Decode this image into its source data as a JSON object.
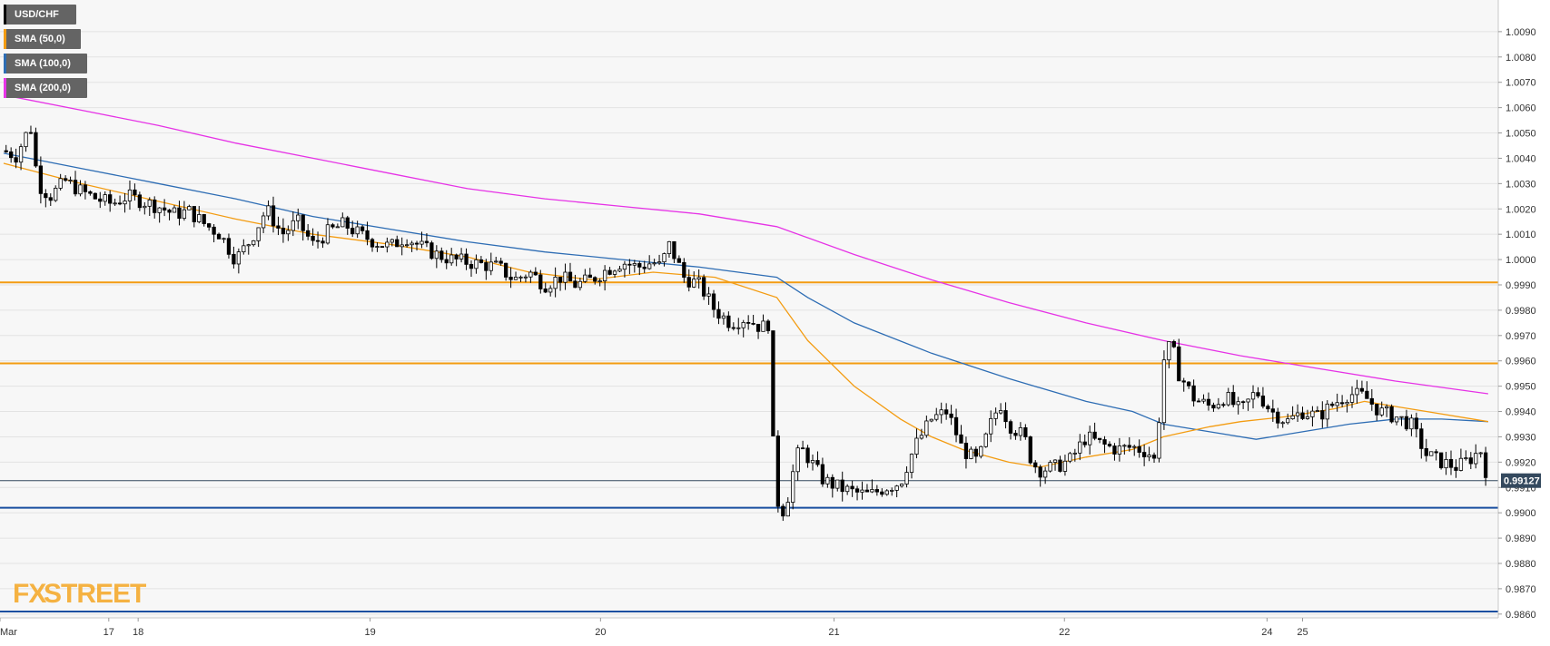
{
  "legend": [
    {
      "label": "USD/CHF",
      "color": "#000000"
    },
    {
      "label": "SMA (50,0)",
      "color": "#f39c12"
    },
    {
      "label": "SMA (100,0)",
      "color": "#2e6db4"
    },
    {
      "label": "SMA (200,0)",
      "color": "#e633e6"
    }
  ],
  "watermark": {
    "text_fx": "FX",
    "text_street": "STREET",
    "color": "#f5a623"
  },
  "price_badge": "0.99127",
  "chart_data": {
    "type": "candlestick",
    "symbol": "USD/CHF",
    "ylim": [
      0.98585,
      1.01025
    ],
    "y_ticks": [
      "0.9860",
      "0.9870",
      "0.9880",
      "0.9890",
      "0.9900",
      "0.9910",
      "0.9920",
      "0.9930",
      "0.9940",
      "0.9950",
      "0.9960",
      "0.9970",
      "0.9980",
      "0.9990",
      "1.0000",
      "1.0010",
      "1.0020",
      "1.0030",
      "1.0040",
      "1.0050",
      "1.0060",
      "1.0070",
      "1.0080",
      "1.0090"
    ],
    "x_labels": [
      {
        "label": "Mar",
        "t": 0
      },
      {
        "label": "17",
        "t": 0.068
      },
      {
        "label": "18",
        "t": 0.087
      },
      {
        "label": "19",
        "t": 0.237
      },
      {
        "label": "20",
        "t": 0.386
      },
      {
        "label": "21",
        "t": 0.537
      },
      {
        "label": "22",
        "t": 0.686
      },
      {
        "label": "24",
        "t": 0.817
      },
      {
        "label": "25",
        "t": 0.84
      }
    ],
    "last_price": 0.99127,
    "horizontal_levels": [
      {
        "value": 0.9991,
        "color": "#f39c12"
      },
      {
        "value": 0.9959,
        "color": "#f39c12"
      },
      {
        "value": 0.9902,
        "color": "#1a4fa0"
      },
      {
        "value": 0.9861,
        "color": "#1a4fa0"
      }
    ],
    "price_path": [
      [
        0,
        1.0043
      ],
      [
        0.008,
        1.0041
      ],
      [
        0.015,
        1.005
      ],
      [
        0.018,
        1.0052
      ],
      [
        0.022,
        1.003
      ],
      [
        0.03,
        1.0025
      ],
      [
        0.04,
        1.0031
      ],
      [
        0.05,
        1.0027
      ],
      [
        0.06,
        1.0024
      ],
      [
        0.07,
        1.0022
      ],
      [
        0.08,
        1.0025
      ],
      [
        0.09,
        1.0023
      ],
      [
        0.1,
        1.0021
      ],
      [
        0.11,
        1.0018
      ],
      [
        0.12,
        1.0019
      ],
      [
        0.13,
        1.0014
      ],
      [
        0.14,
        1.001
      ],
      [
        0.15,
        1.0
      ],
      [
        0.16,
        1.0008
      ],
      [
        0.17,
        1.002
      ],
      [
        0.18,
        1.001
      ],
      [
        0.19,
        1.0015
      ],
      [
        0.2,
        1.0006
      ],
      [
        0.21,
        1.0011
      ],
      [
        0.22,
        1.0014
      ],
      [
        0.23,
        1.001
      ],
      [
        0.24,
        1.0007
      ],
      [
        0.25,
        1.0005
      ],
      [
        0.26,
        1.0009
      ],
      [
        0.27,
        1.0005
      ],
      [
        0.28,
        1.0002
      ],
      [
        0.29,
        1.0
      ],
      [
        0.3,
        0.9999
      ],
      [
        0.31,
        0.9998
      ],
      [
        0.32,
        0.9997
      ],
      [
        0.33,
        0.9992
      ],
      [
        0.34,
        0.9995
      ],
      [
        0.35,
        0.999
      ],
      [
        0.36,
        0.9993
      ],
      [
        0.37,
        0.999
      ],
      [
        0.38,
        0.9992
      ],
      [
        0.39,
        0.9996
      ],
      [
        0.4,
        0.9999
      ],
      [
        0.41,
        0.9997
      ],
      [
        0.42,
        0.9999
      ],
      [
        0.425,
        0.9997
      ],
      [
        0.43,
        1.0006
      ],
      [
        0.435,
        1.0
      ],
      [
        0.44,
        0.9993
      ],
      [
        0.45,
        0.999
      ],
      [
        0.46,
        0.998
      ],
      [
        0.47,
        0.9975
      ],
      [
        0.48,
        0.9977
      ],
      [
        0.49,
        0.9973
      ],
      [
        0.495,
        0.9975
      ],
      [
        0.498,
        0.992
      ],
      [
        0.5,
        0.9905
      ],
      [
        0.505,
        0.99
      ],
      [
        0.51,
        0.9915
      ],
      [
        0.515,
        0.9926
      ],
      [
        0.52,
        0.9922
      ],
      [
        0.53,
        0.9913
      ],
      [
        0.54,
        0.991
      ],
      [
        0.55,
        0.9908
      ],
      [
        0.56,
        0.9907
      ],
      [
        0.57,
        0.991
      ],
      [
        0.58,
        0.9912
      ],
      [
        0.585,
        0.992
      ],
      [
        0.59,
        0.9927
      ],
      [
        0.6,
        0.9937
      ],
      [
        0.61,
        0.994
      ],
      [
        0.615,
        0.9933
      ],
      [
        0.62,
        0.9925
      ],
      [
        0.63,
        0.992
      ],
      [
        0.64,
        0.9938
      ],
      [
        0.645,
        0.9943
      ],
      [
        0.65,
        0.9935
      ],
      [
        0.66,
        0.993
      ],
      [
        0.665,
        0.992
      ],
      [
        0.67,
        0.9917
      ],
      [
        0.68,
        0.9918
      ],
      [
        0.69,
        0.9921
      ],
      [
        0.7,
        0.993
      ],
      [
        0.71,
        0.9927
      ],
      [
        0.72,
        0.9925
      ],
      [
        0.73,
        0.9926
      ],
      [
        0.74,
        0.9924
      ],
      [
        0.745,
        0.992
      ],
      [
        0.75,
        0.996
      ],
      [
        0.755,
        0.9967
      ],
      [
        0.76,
        0.9955
      ],
      [
        0.77,
        0.9945
      ],
      [
        0.78,
        0.9942
      ],
      [
        0.79,
        0.9946
      ],
      [
        0.8,
        0.994
      ],
      [
        0.81,
        0.9948
      ],
      [
        0.82,
        0.994
      ],
      [
        0.83,
        0.9936
      ],
      [
        0.84,
        0.994
      ],
      [
        0.85,
        0.9938
      ],
      [
        0.86,
        0.9943
      ],
      [
        0.87,
        0.9947
      ],
      [
        0.88,
        0.9946
      ],
      [
        0.89,
        0.994
      ],
      [
        0.9,
        0.9938
      ],
      [
        0.91,
        0.9935
      ],
      [
        0.92,
        0.9923
      ],
      [
        0.93,
        0.992
      ],
      [
        0.94,
        0.9918
      ],
      [
        0.95,
        0.9922
      ],
      [
        0.955,
        0.9925
      ],
      [
        0.96,
        0.9913
      ]
    ],
    "sma50": [
      [
        0,
        1.0038
      ],
      [
        0.05,
        1.003
      ],
      [
        0.1,
        1.0023
      ],
      [
        0.15,
        1.0016
      ],
      [
        0.2,
        1.001
      ],
      [
        0.25,
        1.0006
      ],
      [
        0.3,
        1.0001
      ],
      [
        0.34,
        0.9995
      ],
      [
        0.38,
        0.9992
      ],
      [
        0.42,
        0.9995
      ],
      [
        0.46,
        0.9993
      ],
      [
        0.5,
        0.9985
      ],
      [
        0.52,
        0.9968
      ],
      [
        0.55,
        0.995
      ],
      [
        0.58,
        0.9937
      ],
      [
        0.6,
        0.993
      ],
      [
        0.62,
        0.9925
      ],
      [
        0.65,
        0.992
      ],
      [
        0.67,
        0.9918
      ],
      [
        0.7,
        0.9922
      ],
      [
        0.73,
        0.9925
      ],
      [
        0.75,
        0.993
      ],
      [
        0.78,
        0.9934
      ],
      [
        0.8,
        0.9936
      ],
      [
        0.83,
        0.9938
      ],
      [
        0.86,
        0.9941
      ],
      [
        0.88,
        0.9944
      ],
      [
        0.9,
        0.9942
      ],
      [
        0.92,
        0.994
      ],
      [
        0.96,
        0.9936
      ]
    ],
    "sma100": [
      [
        0,
        1.0042
      ],
      [
        0.05,
        1.0036
      ],
      [
        0.1,
        1.003
      ],
      [
        0.15,
        1.0024
      ],
      [
        0.2,
        1.0017
      ],
      [
        0.25,
        1.0012
      ],
      [
        0.3,
        1.0007
      ],
      [
        0.35,
        1.0003
      ],
      [
        0.4,
        1.0
      ],
      [
        0.45,
        0.9997
      ],
      [
        0.5,
        0.9993
      ],
      [
        0.52,
        0.9985
      ],
      [
        0.55,
        0.9975
      ],
      [
        0.6,
        0.9963
      ],
      [
        0.65,
        0.9953
      ],
      [
        0.7,
        0.9944
      ],
      [
        0.73,
        0.994
      ],
      [
        0.75,
        0.9935
      ],
      [
        0.78,
        0.9932
      ],
      [
        0.81,
        0.9929
      ],
      [
        0.84,
        0.9932
      ],
      [
        0.87,
        0.9935
      ],
      [
        0.9,
        0.9937
      ],
      [
        0.93,
        0.9937
      ],
      [
        0.96,
        0.9936
      ]
    ],
    "sma200": [
      [
        0,
        1.0065
      ],
      [
        0.05,
        1.0059
      ],
      [
        0.1,
        1.0053
      ],
      [
        0.15,
        1.0046
      ],
      [
        0.2,
        1.004
      ],
      [
        0.25,
        1.0034
      ],
      [
        0.3,
        1.0028
      ],
      [
        0.35,
        1.0024
      ],
      [
        0.4,
        1.0021
      ],
      [
        0.45,
        1.0018
      ],
      [
        0.5,
        1.0013
      ],
      [
        0.55,
        1.0002
      ],
      [
        0.6,
        0.9992
      ],
      [
        0.65,
        0.9983
      ],
      [
        0.7,
        0.9975
      ],
      [
        0.75,
        0.9968
      ],
      [
        0.8,
        0.9962
      ],
      [
        0.85,
        0.9957
      ],
      [
        0.9,
        0.9952
      ],
      [
        0.96,
        0.9947
      ]
    ]
  },
  "colors": {
    "background": "#f7f7f7",
    "grid": "#e3e3e3",
    "candle": "#000000",
    "badge_bg": "#34495e"
  }
}
